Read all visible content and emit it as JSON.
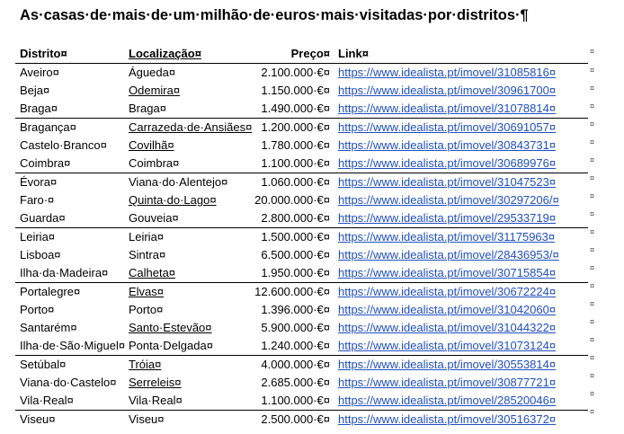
{
  "title": "As·casas·de·mais·de·um·milhão·de·euros·mais·visitadas·por·distritos·¶",
  "columns": {
    "distrito": "Distrito¤",
    "localizacao": "Localização¤",
    "preco": "Preço¤",
    "link": "Link¤"
  },
  "rows": [
    {
      "distrito": "Aveiro¤",
      "localizacao": "Águeda¤",
      "preco": "2.100.000·€¤",
      "link": "https://www.idealista.pt/imovel/31085816¤"
    },
    {
      "distrito": "Beja¤",
      "localizacao": "Odemira¤",
      "preco": "1.150.000·€¤",
      "link": "https://www.idealista.pt/imovel/30961700¤"
    },
    {
      "distrito": "Braga¤",
      "localizacao": "Braga¤",
      "preco": "1.490.000·€¤",
      "link": "https://www.idealista.pt/imovel/31078814¤"
    },
    {
      "distrito": "Bragança¤",
      "localizacao": "Carrazeda·de·Ansiães¤",
      "preco": "1.200.000·€¤",
      "link": "https://www.idealista.pt/imovel/30691057¤"
    },
    {
      "distrito": "Castelo·Branco¤",
      "localizacao": "Covilhã¤",
      "preco": "1.780.000·€¤",
      "link": "https://www.idealista.pt/imovel/30843731¤"
    },
    {
      "distrito": "Coimbra¤",
      "localizacao": "Coimbra¤",
      "preco": "1.100.000·€¤",
      "link": "https://www.idealista.pt/imovel/30689976¤"
    },
    {
      "distrito": "Évora¤",
      "localizacao": "Viana·do·Alentejo¤",
      "preco": "1.060.000·€¤",
      "link": "https://www.idealista.pt/imovel/31047523¤"
    },
    {
      "distrito": "Faro·¤",
      "localizacao": "Quinta·do·Lago¤",
      "preco": "20.000.000·€¤",
      "link": "https://www.idealista.pt/imovel/30297206/¤"
    },
    {
      "distrito": "Guarda¤",
      "localizacao": "Gouveia¤",
      "preco": "2.800.000·€¤",
      "link": "https://www.idealista.pt/imovel/29533719¤"
    },
    {
      "distrito": "Leiria¤",
      "localizacao": "Leiria¤",
      "preco": "1.500.000·€¤",
      "link": "https://www.idealista.pt/imovel/31175963¤"
    },
    {
      "distrito": "Lisboa¤",
      "localizacao": "Sintra¤",
      "preco": "6.500.000·€¤",
      "link": "https://www.idealista.pt/imovel/28436953/¤"
    },
    {
      "distrito": "Ilha·da·Madeira¤",
      "localizacao": "Calheta¤",
      "preco": "1.950.000·€¤",
      "link": "https://www.idealista.pt/imovel/30715854¤"
    },
    {
      "distrito": "Portalegre¤",
      "localizacao": "Elvas¤",
      "preco": "12.600.000·€¤",
      "link": "https://www.idealista.pt/imovel/30672224¤"
    },
    {
      "distrito": "Porto¤",
      "localizacao": "Porto¤",
      "preco": "1.396.000·€¤",
      "link": "https://www.idealista.pt/imovel/31042060¤"
    },
    {
      "distrito": "Santarém¤",
      "localizacao": "Santo·Estevão¤",
      "preco": "5.900.000·€¤",
      "link": "https://www.idealista.pt/imovel/31044322¤"
    },
    {
      "distrito": "Ilha·de·São·Miguel¤",
      "localizacao": "Ponta·Delgada¤",
      "preco": "1.240.000·€¤",
      "link": "https://www.idealista.pt/imovel/31073124¤"
    },
    {
      "distrito": "Setúbal¤",
      "localizacao": "Tróia¤",
      "preco": "4.000.000·€¤",
      "link": "https://www.idealista.pt/imovel/30553814¤"
    },
    {
      "distrito": "Viana·do·Castelo¤",
      "localizacao": "Serreleis¤",
      "preco": "2.685.000·€¤",
      "link": "https://www.idealista.pt/imovel/30877721¤"
    },
    {
      "distrito": "Vila·Real¤",
      "localizacao": "Vila·Real¤",
      "preco": "1.100.000·€¤",
      "link": "https://www.idealista.pt/imovel/28520046¤"
    },
    {
      "distrito": "Viseu¤",
      "localizacao": "Viseu¤",
      "preco": "2.500.000·€¤",
      "link": "https://www.idealista.pt/imovel/30516372¤"
    }
  ],
  "end_of_row_mark": "¤"
}
